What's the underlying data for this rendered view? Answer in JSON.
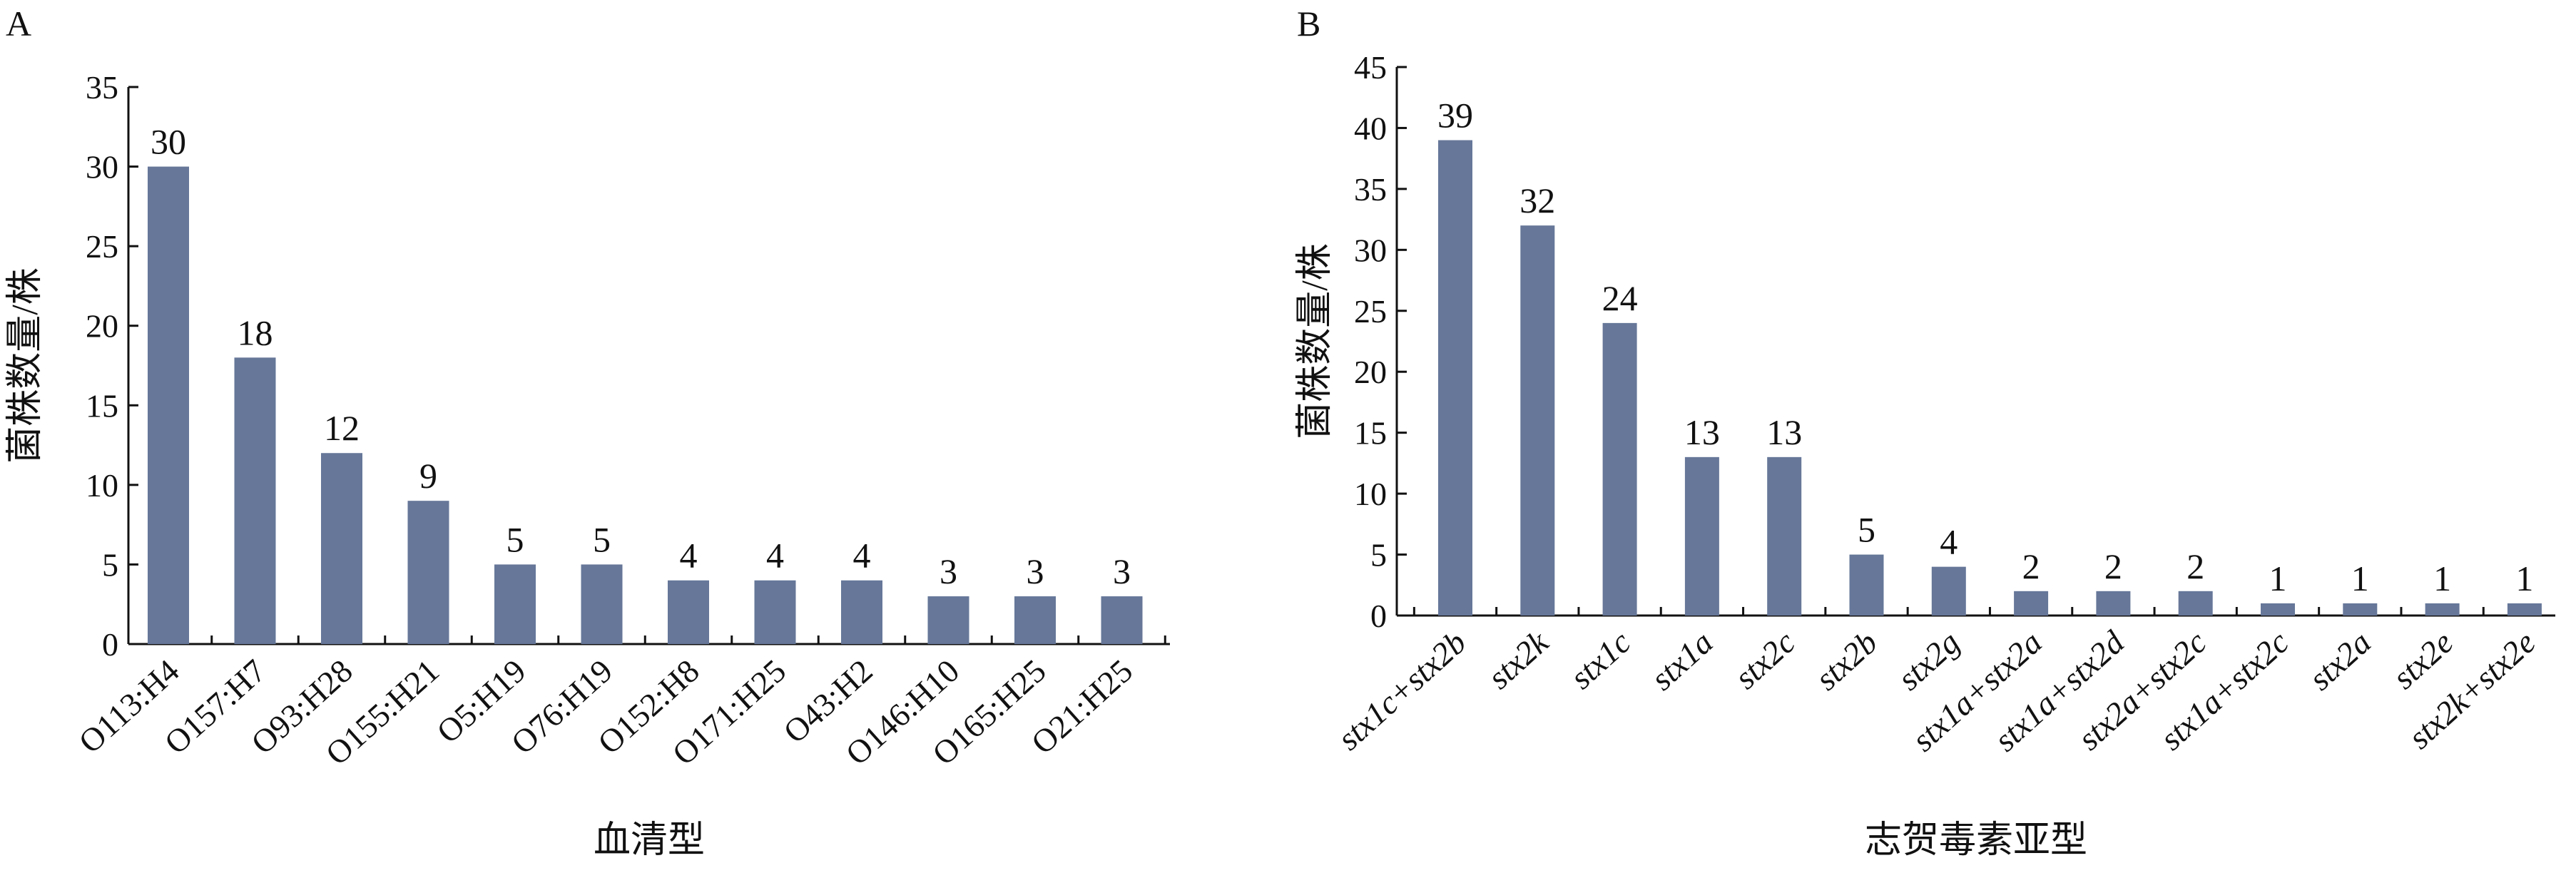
{
  "colors": {
    "bar": "#667799",
    "axis": "#111111",
    "background": "#ffffff"
  },
  "chart_data": [
    {
      "panel": "A",
      "type": "bar",
      "categories": [
        "O113:H4",
        "O157:H7",
        "O93:H28",
        "O155:H21",
        "O5:H19",
        "O76:H19",
        "O152:H8",
        "O171:H25",
        "O43:H2",
        "O146:H10",
        "O165:H25",
        "O21:H25"
      ],
      "values": [
        30,
        18,
        12,
        9,
        5,
        5,
        4,
        4,
        4,
        3,
        3,
        3
      ],
      "data_labels": [
        "30",
        "18",
        "12",
        "9",
        "5",
        "5",
        "4",
        "4",
        "4",
        "3",
        "3",
        "3"
      ],
      "title": "",
      "xlabel": "血清型",
      "ylabel": "菌株数量/株",
      "ylim": [
        0,
        35
      ],
      "yticks": [
        0,
        5,
        10,
        15,
        20,
        25,
        30,
        35
      ],
      "ytick_labels": [
        "0",
        "5",
        "10",
        "15",
        "20",
        "25",
        "30",
        "35"
      ],
      "italic_categories": false,
      "grid": false,
      "legend": "none"
    },
    {
      "panel": "B",
      "type": "bar",
      "categories": [
        "stx1c+stx2b",
        "stx2k",
        "stx1c",
        "stx1a",
        "stx2c",
        "stx2b",
        "stx2g",
        "stx1a+stx2a",
        "stx1a+stx2d",
        "stx2a+stx2c",
        "stx1a+stx2c",
        "stx2a",
        "stx2e",
        "stx2k+stx2e"
      ],
      "values": [
        39,
        32,
        24,
        13,
        13,
        5,
        4,
        2,
        2,
        2,
        1,
        1,
        1,
        1
      ],
      "data_labels": [
        "39",
        "32",
        "24",
        "13",
        "13",
        "5",
        "4",
        "2",
        "2",
        "2",
        "1",
        "1",
        "1",
        "1"
      ],
      "title": "",
      "xlabel": "志贺毒素亚型",
      "ylabel": "菌株数量/株",
      "ylim": [
        0,
        45
      ],
      "yticks": [
        0,
        5,
        10,
        15,
        20,
        25,
        30,
        35,
        40,
        45
      ],
      "ytick_labels": [
        "0",
        "5",
        "10",
        "15",
        "20",
        "25",
        "30",
        "35",
        "40",
        "45"
      ],
      "italic_categories": true,
      "grid": false,
      "legend": "none"
    }
  ]
}
